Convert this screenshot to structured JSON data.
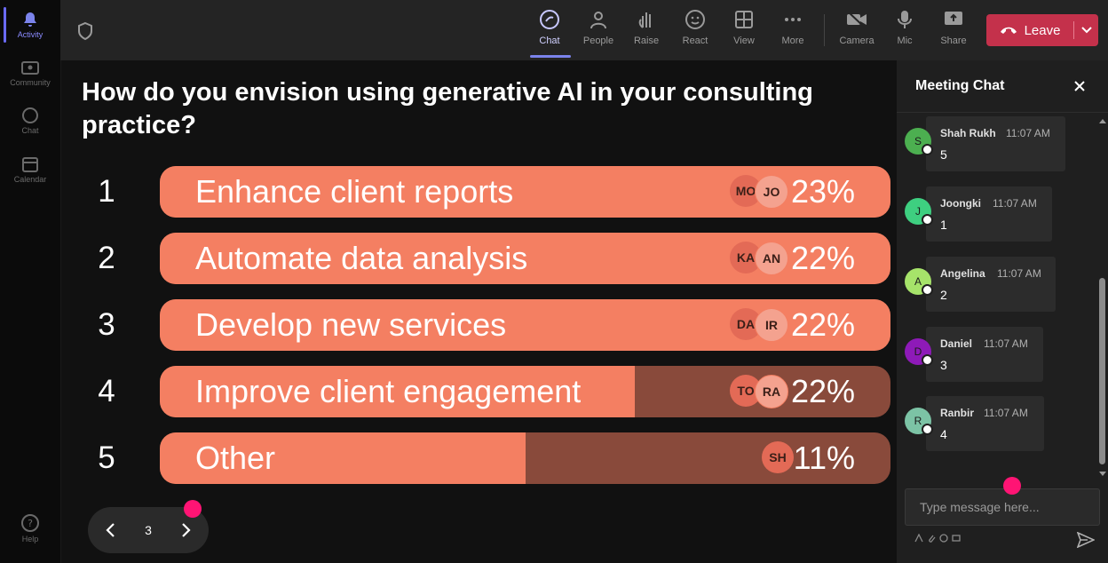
{
  "rail": {
    "items": [
      {
        "label": "Activity",
        "icon": "bell-icon",
        "active": true
      },
      {
        "label": "Community",
        "icon": "community-icon"
      },
      {
        "label": "Chat",
        "icon": "chat-icon"
      },
      {
        "label": "Calendar",
        "icon": "calendar-icon"
      },
      {
        "label": "Help",
        "icon": "help-icon"
      }
    ]
  },
  "toolbar": {
    "buttons": [
      {
        "label": "Chat",
        "icon": "chat-icon",
        "active": true
      },
      {
        "label": "People",
        "icon": "people-icon"
      },
      {
        "label": "Raise",
        "icon": "raise-hand-icon"
      },
      {
        "label": "React",
        "icon": "react-icon"
      },
      {
        "label": "View",
        "icon": "view-icon"
      },
      {
        "label": "More",
        "icon": "more-icon"
      },
      {
        "label": "Camera",
        "icon": "camera-off-icon"
      },
      {
        "label": "Mic",
        "icon": "mic-icon"
      },
      {
        "label": "Share",
        "icon": "share-icon"
      }
    ],
    "leave_label": "Leave",
    "leave_color": "#c4314b"
  },
  "poll": {
    "question": "How do you envision using generative AI in your consulting practice?",
    "options": [
      {
        "num": "1",
        "label": "Enhance client reports",
        "percent": "23%",
        "fill": 1.0,
        "avatars": [
          "MO",
          "JO"
        ]
      },
      {
        "num": "2",
        "label": "Automate data analysis",
        "percent": "22%",
        "fill": 1.0,
        "avatars": [
          "KA",
          "AN"
        ]
      },
      {
        "num": "3",
        "label": "Develop new services",
        "percent": "22%",
        "fill": 1.0,
        "avatars": [
          "DA",
          "IR"
        ]
      },
      {
        "num": "4",
        "label": "Improve client engagement",
        "percent": "22%",
        "fill": 0.65,
        "avatars": [
          "TO",
          "RA"
        ]
      },
      {
        "num": "5",
        "label": "Other",
        "percent": "11%",
        "fill": 0.5,
        "avatars": [
          "SH"
        ]
      }
    ],
    "bar_color": "#f47f62",
    "bar_bg_color": "#894a3b"
  },
  "pager": {
    "page": "3"
  },
  "chat": {
    "title": "Meeting Chat",
    "messages": [
      {
        "initial": "S",
        "name": "Shah Rukh",
        "time": "11:07 AM",
        "text": "5",
        "color": "#4caf50"
      },
      {
        "initial": "J",
        "name": "Joongki",
        "time": "11:07 AM",
        "text": "1",
        "color": "#3ecf80"
      },
      {
        "initial": "A",
        "name": "Angelina",
        "time": "11:07 AM",
        "text": "2",
        "color": "#a6e36a"
      },
      {
        "initial": "D",
        "name": "Daniel",
        "time": "11:07 AM",
        "text": "3",
        "color": "#8e1ab8"
      },
      {
        "initial": "R",
        "name": "Ranbir",
        "time": "11:07 AM",
        "text": "4",
        "color": "#7cc3a5"
      }
    ],
    "input_placeholder": "Type message here..."
  }
}
